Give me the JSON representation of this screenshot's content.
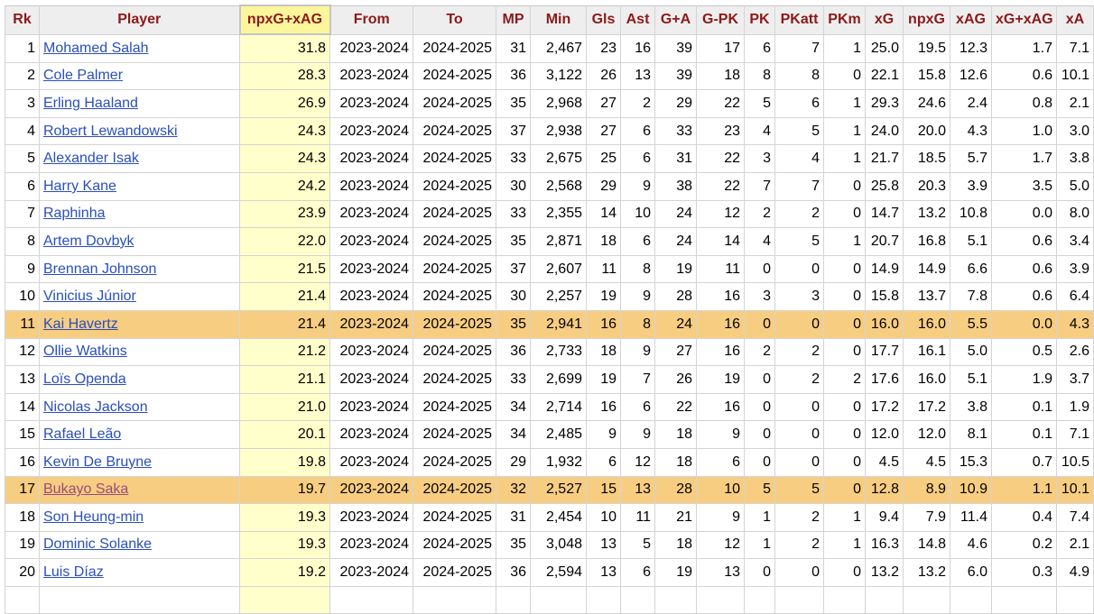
{
  "table": {
    "headers": [
      "Rk",
      "Player",
      "npxG+xAG",
      "From",
      "To",
      "MP",
      "Min",
      "Gls",
      "Ast",
      "G+A",
      "G-PK",
      "PK",
      "PKatt",
      "PKm",
      "xG",
      "npxG",
      "xAG",
      "xG+xAG",
      "xA"
    ],
    "sorted_column": "npxG+xAG",
    "rows": [
      {
        "rk": "1",
        "player": "Mohamed Salah",
        "npxg_xag": "31.8",
        "from": "2023-2024",
        "to": "2024-2025",
        "mp": "31",
        "min": "2,467",
        "gls": "23",
        "ast": "16",
        "ga": "39",
        "gpk": "17",
        "pk": "6",
        "pkatt": "7",
        "pkm": "1",
        "xg": "25.0",
        "npxg": "19.5",
        "xag": "12.3",
        "xg_xag": "1.7",
        "xa": "7.1",
        "highlight": false
      },
      {
        "rk": "2",
        "player": "Cole Palmer",
        "npxg_xag": "28.3",
        "from": "2023-2024",
        "to": "2024-2025",
        "mp": "36",
        "min": "3,122",
        "gls": "26",
        "ast": "13",
        "ga": "39",
        "gpk": "18",
        "pk": "8",
        "pkatt": "8",
        "pkm": "0",
        "xg": "22.1",
        "npxg": "15.8",
        "xag": "12.6",
        "xg_xag": "0.6",
        "xa": "10.1",
        "highlight": false
      },
      {
        "rk": "3",
        "player": "Erling Haaland",
        "npxg_xag": "26.9",
        "from": "2023-2024",
        "to": "2024-2025",
        "mp": "35",
        "min": "2,968",
        "gls": "27",
        "ast": "2",
        "ga": "29",
        "gpk": "22",
        "pk": "5",
        "pkatt": "6",
        "pkm": "1",
        "xg": "29.3",
        "npxg": "24.6",
        "xag": "2.4",
        "xg_xag": "0.8",
        "xa": "2.1",
        "highlight": false
      },
      {
        "rk": "4",
        "player": "Robert Lewandowski",
        "npxg_xag": "24.3",
        "from": "2023-2024",
        "to": "2024-2025",
        "mp": "37",
        "min": "2,938",
        "gls": "27",
        "ast": "6",
        "ga": "33",
        "gpk": "23",
        "pk": "4",
        "pkatt": "5",
        "pkm": "1",
        "xg": "24.0",
        "npxg": "20.0",
        "xag": "4.3",
        "xg_xag": "1.0",
        "xa": "3.0",
        "highlight": false
      },
      {
        "rk": "5",
        "player": "Alexander Isak",
        "npxg_xag": "24.3",
        "from": "2023-2024",
        "to": "2024-2025",
        "mp": "33",
        "min": "2,675",
        "gls": "25",
        "ast": "6",
        "ga": "31",
        "gpk": "22",
        "pk": "3",
        "pkatt": "4",
        "pkm": "1",
        "xg": "21.7",
        "npxg": "18.5",
        "xag": "5.7",
        "xg_xag": "1.7",
        "xa": "3.8",
        "highlight": false
      },
      {
        "rk": "6",
        "player": "Harry Kane",
        "npxg_xag": "24.2",
        "from": "2023-2024",
        "to": "2024-2025",
        "mp": "30",
        "min": "2,568",
        "gls": "29",
        "ast": "9",
        "ga": "38",
        "gpk": "22",
        "pk": "7",
        "pkatt": "7",
        "pkm": "0",
        "xg": "25.8",
        "npxg": "20.3",
        "xag": "3.9",
        "xg_xag": "3.5",
        "xa": "5.0",
        "highlight": false
      },
      {
        "rk": "7",
        "player": "Raphinha",
        "npxg_xag": "23.9",
        "from": "2023-2024",
        "to": "2024-2025",
        "mp": "33",
        "min": "2,355",
        "gls": "14",
        "ast": "10",
        "ga": "24",
        "gpk": "12",
        "pk": "2",
        "pkatt": "2",
        "pkm": "0",
        "xg": "14.7",
        "npxg": "13.2",
        "xag": "10.8",
        "xg_xag": "0.0",
        "xa": "8.0",
        "highlight": false
      },
      {
        "rk": "8",
        "player": "Artem Dovbyk",
        "npxg_xag": "22.0",
        "from": "2023-2024",
        "to": "2024-2025",
        "mp": "35",
        "min": "2,871",
        "gls": "18",
        "ast": "6",
        "ga": "24",
        "gpk": "14",
        "pk": "4",
        "pkatt": "5",
        "pkm": "1",
        "xg": "20.7",
        "npxg": "16.8",
        "xag": "5.1",
        "xg_xag": "0.6",
        "xa": "3.4",
        "highlight": false
      },
      {
        "rk": "9",
        "player": "Brennan Johnson",
        "npxg_xag": "21.5",
        "from": "2023-2024",
        "to": "2024-2025",
        "mp": "37",
        "min": "2,607",
        "gls": "11",
        "ast": "8",
        "ga": "19",
        "gpk": "11",
        "pk": "0",
        "pkatt": "0",
        "pkm": "0",
        "xg": "14.9",
        "npxg": "14.9",
        "xag": "6.6",
        "xg_xag": "0.6",
        "xa": "3.9",
        "highlight": false
      },
      {
        "rk": "10",
        "player": "Vinicius Júnior",
        "npxg_xag": "21.4",
        "from": "2023-2024",
        "to": "2024-2025",
        "mp": "30",
        "min": "2,257",
        "gls": "19",
        "ast": "9",
        "ga": "28",
        "gpk": "16",
        "pk": "3",
        "pkatt": "3",
        "pkm": "0",
        "xg": "15.8",
        "npxg": "13.7",
        "xag": "7.8",
        "xg_xag": "0.6",
        "xa": "6.4",
        "highlight": false
      },
      {
        "rk": "11",
        "player": "Kai Havertz",
        "npxg_xag": "21.4",
        "from": "2023-2024",
        "to": "2024-2025",
        "mp": "35",
        "min": "2,941",
        "gls": "16",
        "ast": "8",
        "ga": "24",
        "gpk": "16",
        "pk": "0",
        "pkatt": "0",
        "pkm": "0",
        "xg": "16.0",
        "npxg": "16.0",
        "xag": "5.5",
        "xg_xag": "0.0",
        "xa": "4.3",
        "highlight": true
      },
      {
        "rk": "12",
        "player": "Ollie Watkins",
        "npxg_xag": "21.2",
        "from": "2023-2024",
        "to": "2024-2025",
        "mp": "36",
        "min": "2,733",
        "gls": "18",
        "ast": "9",
        "ga": "27",
        "gpk": "16",
        "pk": "2",
        "pkatt": "2",
        "pkm": "0",
        "xg": "17.7",
        "npxg": "16.1",
        "xag": "5.0",
        "xg_xag": "0.5",
        "xa": "2.6",
        "highlight": false
      },
      {
        "rk": "13",
        "player": "Loïs Openda",
        "npxg_xag": "21.1",
        "from": "2023-2024",
        "to": "2024-2025",
        "mp": "33",
        "min": "2,699",
        "gls": "19",
        "ast": "7",
        "ga": "26",
        "gpk": "19",
        "pk": "0",
        "pkatt": "2",
        "pkm": "2",
        "xg": "17.6",
        "npxg": "16.0",
        "xag": "5.1",
        "xg_xag": "1.9",
        "xa": "3.7",
        "highlight": false
      },
      {
        "rk": "14",
        "player": "Nicolas Jackson",
        "npxg_xag": "21.0",
        "from": "2023-2024",
        "to": "2024-2025",
        "mp": "34",
        "min": "2,714",
        "gls": "16",
        "ast": "6",
        "ga": "22",
        "gpk": "16",
        "pk": "0",
        "pkatt": "0",
        "pkm": "0",
        "xg": "17.2",
        "npxg": "17.2",
        "xag": "3.8",
        "xg_xag": "0.1",
        "xa": "1.9",
        "highlight": false
      },
      {
        "rk": "15",
        "player": "Rafael Leão",
        "npxg_xag": "20.1",
        "from": "2023-2024",
        "to": "2024-2025",
        "mp": "34",
        "min": "2,485",
        "gls": "9",
        "ast": "9",
        "ga": "18",
        "gpk": "9",
        "pk": "0",
        "pkatt": "0",
        "pkm": "0",
        "xg": "12.0",
        "npxg": "12.0",
        "xag": "8.1",
        "xg_xag": "0.1",
        "xa": "7.1",
        "highlight": false
      },
      {
        "rk": "16",
        "player": "Kevin De Bruyne",
        "npxg_xag": "19.8",
        "from": "2023-2024",
        "to": "2024-2025",
        "mp": "29",
        "min": "1,932",
        "gls": "6",
        "ast": "12",
        "ga": "18",
        "gpk": "6",
        "pk": "0",
        "pkatt": "0",
        "pkm": "0",
        "xg": "4.5",
        "npxg": "4.5",
        "xag": "15.3",
        "xg_xag": "0.7",
        "xa": "10.5",
        "highlight": false
      },
      {
        "rk": "17",
        "player": "Bukayo Saka",
        "npxg_xag": "19.7",
        "from": "2023-2024",
        "to": "2024-2025",
        "mp": "32",
        "min": "2,527",
        "gls": "15",
        "ast": "13",
        "ga": "28",
        "gpk": "10",
        "pk": "5",
        "pkatt": "5",
        "pkm": "0",
        "xg": "12.8",
        "npxg": "8.9",
        "xag": "10.9",
        "xg_xag": "1.1",
        "xa": "10.1",
        "highlight": true
      },
      {
        "rk": "18",
        "player": "Son Heung-min",
        "npxg_xag": "19.3",
        "from": "2023-2024",
        "to": "2024-2025",
        "mp": "31",
        "min": "2,454",
        "gls": "10",
        "ast": "11",
        "ga": "21",
        "gpk": "9",
        "pk": "1",
        "pkatt": "2",
        "pkm": "1",
        "xg": "9.4",
        "npxg": "7.9",
        "xag": "11.4",
        "xg_xag": "0.4",
        "xa": "7.4",
        "highlight": false
      },
      {
        "rk": "19",
        "player": "Dominic Solanke",
        "npxg_xag": "19.3",
        "from": "2023-2024",
        "to": "2024-2025",
        "mp": "35",
        "min": "3,048",
        "gls": "13",
        "ast": "5",
        "ga": "18",
        "gpk": "12",
        "pk": "1",
        "pkatt": "2",
        "pkm": "1",
        "xg": "16.3",
        "npxg": "14.8",
        "xag": "4.6",
        "xg_xag": "0.2",
        "xa": "2.1",
        "highlight": false
      },
      {
        "rk": "20",
        "player": "Luis Díaz",
        "npxg_xag": "19.2",
        "from": "2023-2024",
        "to": "2024-2025",
        "mp": "36",
        "min": "2,594",
        "gls": "13",
        "ast": "6",
        "ga": "19",
        "gpk": "13",
        "pk": "0",
        "pkatt": "0",
        "pkm": "0",
        "xg": "13.2",
        "npxg": "13.2",
        "xag": "6.0",
        "xg_xag": "0.3",
        "xa": "4.9",
        "highlight": false
      }
    ]
  },
  "colors": {
    "header_text": "#8b1a1a",
    "header_bg": "#eeeeee",
    "sorted_column_bg": "#ffffcc",
    "highlight_row_bg": "#f7cd81",
    "link": "#2a4ebc",
    "visited_link": "#9a4b79"
  }
}
